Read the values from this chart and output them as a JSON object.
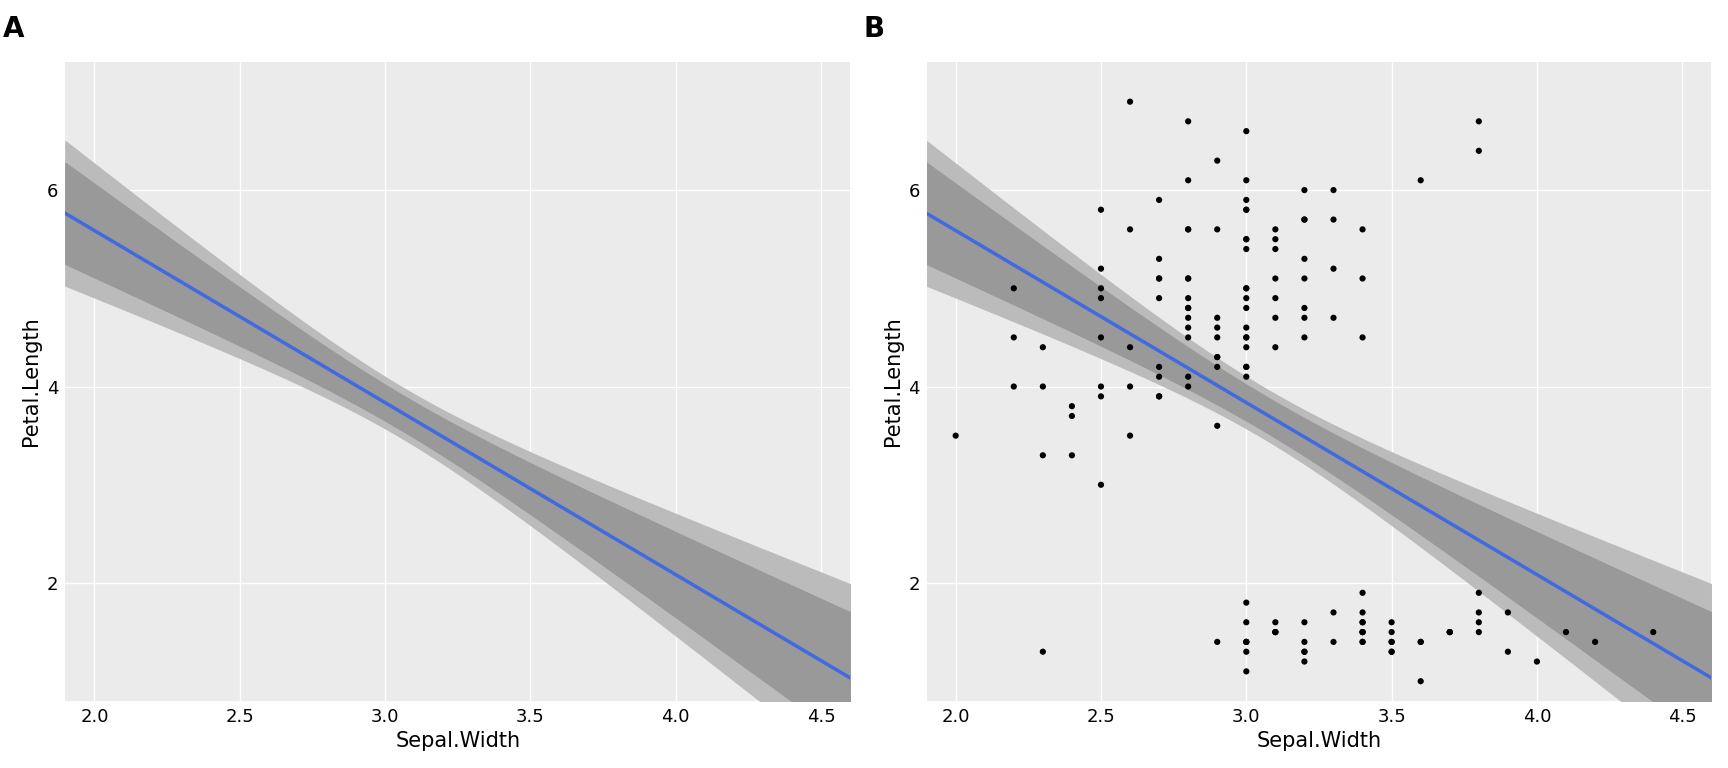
{
  "sepal_width": [
    3.5,
    3.0,
    3.2,
    3.1,
    3.6,
    3.9,
    3.4,
    3.4,
    2.9,
    3.1,
    3.7,
    3.4,
    3.0,
    3.0,
    4.0,
    4.4,
    3.9,
    3.5,
    3.8,
    3.8,
    3.4,
    3.7,
    3.6,
    3.3,
    3.4,
    3.0,
    3.4,
    3.5,
    3.4,
    3.2,
    3.1,
    3.4,
    4.1,
    4.2,
    3.1,
    3.2,
    3.5,
    3.6,
    3.0,
    3.4,
    3.5,
    2.3,
    3.2,
    3.5,
    3.8,
    3.0,
    3.8,
    3.2,
    3.7,
    3.3,
    3.2,
    3.2,
    3.1,
    2.3,
    2.8,
    2.8,
    3.3,
    2.4,
    2.9,
    2.7,
    2.0,
    3.0,
    2.2,
    2.9,
    2.9,
    3.1,
    3.0,
    2.7,
    2.2,
    2.5,
    3.2,
    2.8,
    2.5,
    2.8,
    2.9,
    3.0,
    2.8,
    3.0,
    2.9,
    2.6,
    2.4,
    2.4,
    2.7,
    2.7,
    3.0,
    3.4,
    3.1,
    2.3,
    3.0,
    2.5,
    2.6,
    3.0,
    2.6,
    2.3,
    2.7,
    3.0,
    2.9,
    2.9,
    2.5,
    2.8,
    3.3,
    2.7,
    3.0,
    2.9,
    3.0,
    3.0,
    2.5,
    2.9,
    2.5,
    3.6,
    3.2,
    2.7,
    3.0,
    2.5,
    2.8,
    3.2,
    3.0,
    3.8,
    2.6,
    2.2,
    3.2,
    2.8,
    2.8,
    2.7,
    3.3,
    3.2,
    2.8,
    3.0,
    2.8,
    3.0,
    2.8,
    3.8,
    2.8,
    2.8,
    2.6,
    3.0,
    3.4,
    3.1,
    3.0,
    3.1,
    3.1,
    3.1,
    2.7,
    3.2,
    3.3,
    3.0,
    2.5,
    3.0,
    3.4,
    3.0
  ],
  "petal_length": [
    1.4,
    1.4,
    1.3,
    1.5,
    1.4,
    1.7,
    1.4,
    1.5,
    1.4,
    1.5,
    1.5,
    1.6,
    1.4,
    1.1,
    1.2,
    1.5,
    1.3,
    1.4,
    1.7,
    1.5,
    1.7,
    1.5,
    1.0,
    1.7,
    1.9,
    1.6,
    1.6,
    1.5,
    1.4,
    1.6,
    1.6,
    1.5,
    1.5,
    1.4,
    1.5,
    1.2,
    1.3,
    1.4,
    1.3,
    1.5,
    1.3,
    1.3,
    1.3,
    1.6,
    1.9,
    1.4,
    1.6,
    1.4,
    1.5,
    1.4,
    4.7,
    4.5,
    4.9,
    4.0,
    4.6,
    4.5,
    4.7,
    3.3,
    4.6,
    3.9,
    3.5,
    4.2,
    4.0,
    4.7,
    3.6,
    4.4,
    4.5,
    4.1,
    4.5,
    3.9,
    4.8,
    4.0,
    4.9,
    4.7,
    4.3,
    4.4,
    4.8,
    5.0,
    4.5,
    3.5,
    3.8,
    3.7,
    3.9,
    5.1,
    4.5,
    4.5,
    4.7,
    4.4,
    4.1,
    4.0,
    4.4,
    4.6,
    4.0,
    3.3,
    4.2,
    4.2,
    4.2,
    4.3,
    3.0,
    4.1,
    6.0,
    5.1,
    5.9,
    5.6,
    5.8,
    6.6,
    4.5,
    6.3,
    5.8,
    6.1,
    5.1,
    5.3,
    5.5,
    5.0,
    5.1,
    5.3,
    5.5,
    6.7,
    6.9,
    5.0,
    5.7,
    4.9,
    6.7,
    4.9,
    5.7,
    6.0,
    4.8,
    4.9,
    5.6,
    5.8,
    6.1,
    6.4,
    5.6,
    5.1,
    5.6,
    6.1,
    5.6,
    5.5,
    4.8,
    5.4,
    5.6,
    5.1,
    5.9,
    5.7,
    5.2,
    5.0,
    5.2,
    5.4,
    5.1,
    1.8
  ],
  "xlim": [
    1.9,
    4.6
  ],
  "ylim": [
    0.8,
    7.3
  ],
  "xlabel": "Sepal.Width",
  "ylabel": "Petal.Length",
  "bg_color": "#EBEBEB",
  "grid_color": "#FFFFFF",
  "line_color": "#4169E1",
  "ci_dark_color": "#999999",
  "ci_light_color": "#BBBBBB",
  "point_color": "#000000",
  "point_size": 20,
  "label_A": "A",
  "label_B": "B",
  "yticks": [
    2,
    4,
    6
  ],
  "xticks": [
    2.0,
    2.5,
    3.0,
    3.5,
    4.0,
    4.5
  ]
}
